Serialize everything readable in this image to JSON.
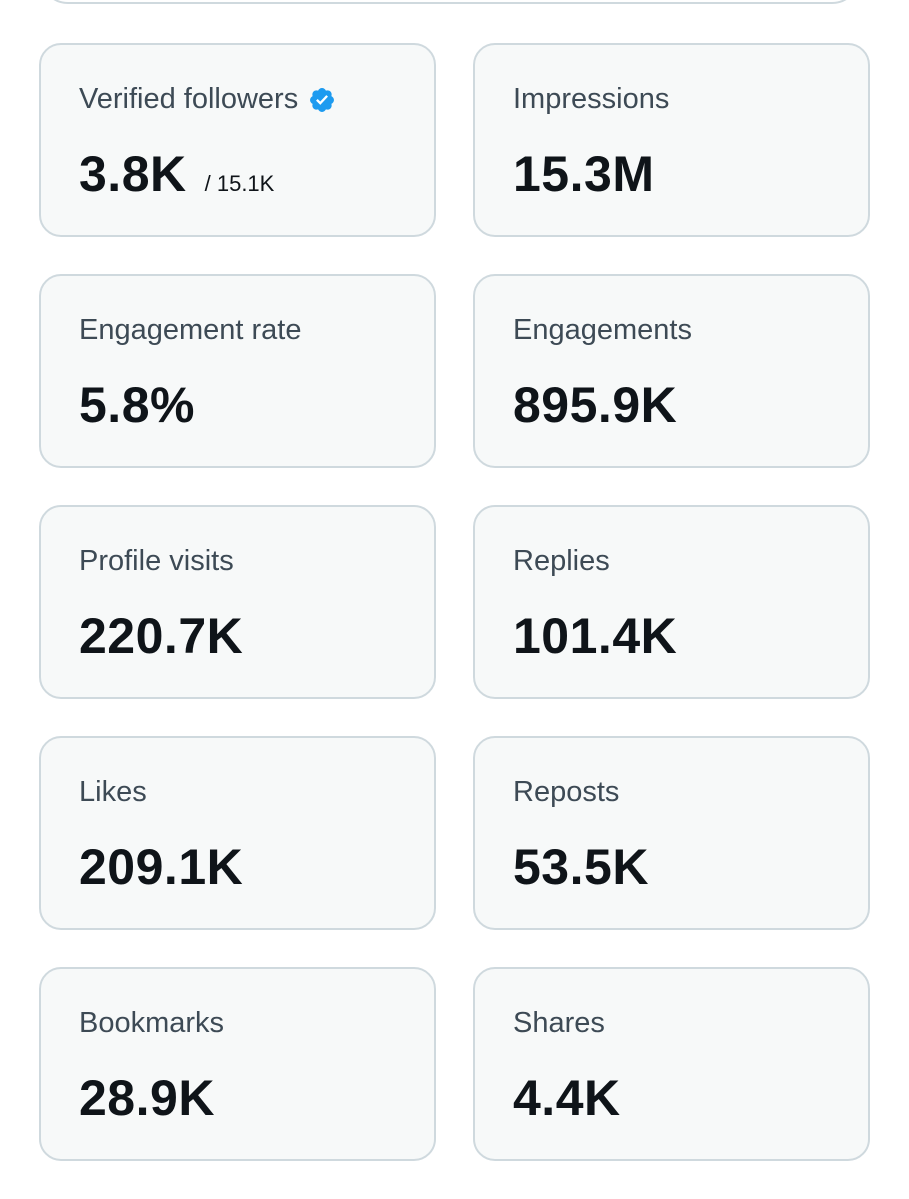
{
  "colors": {
    "card_background": "#f7f9f9",
    "card_border": "#cfd9de",
    "label_text": "#536471",
    "value_text": "#0f1419",
    "verified_badge": "#1d9bf0"
  },
  "metrics": [
    {
      "label": "Verified followers",
      "value": "3.8K",
      "sub": "/ 15.1K",
      "icon": "verified-badge-icon"
    },
    {
      "label": "Impressions",
      "value": "15.3M"
    },
    {
      "label": "Engagement rate",
      "value": "5.8%"
    },
    {
      "label": "Engagements",
      "value": "895.9K"
    },
    {
      "label": "Profile visits",
      "value": "220.7K"
    },
    {
      "label": "Replies",
      "value": "101.4K"
    },
    {
      "label": "Likes",
      "value": "209.1K"
    },
    {
      "label": "Reposts",
      "value": "53.5K"
    },
    {
      "label": "Bookmarks",
      "value": "28.9K"
    },
    {
      "label": "Shares",
      "value": "4.4K"
    }
  ]
}
